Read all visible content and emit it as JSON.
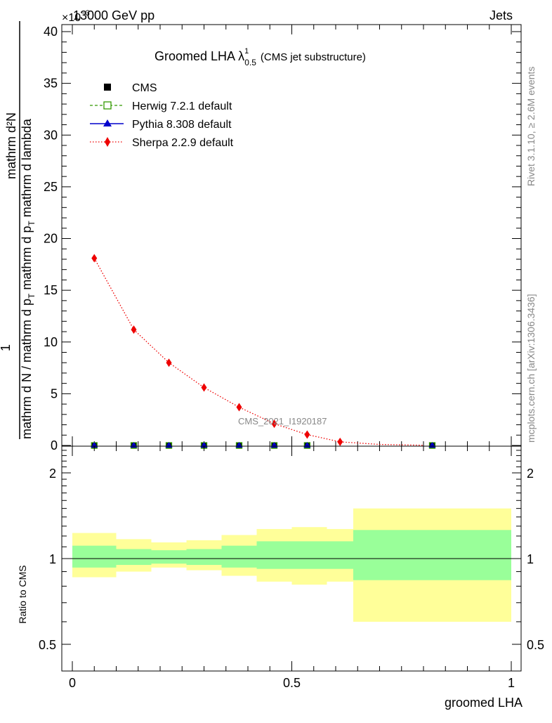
{
  "header": {
    "left": "13000 GeV pp",
    "right": "Jets",
    "exponent": "×10",
    "exponent_power": "−3"
  },
  "side": {
    "rivet": "Rivet 3.1.10, ≥ 2.6M events",
    "mcplots": "mcplots.cern.ch [arXiv:1306.3436]"
  },
  "plot_title": {
    "main": "Groomed LHA",
    "lambda": "λ",
    "sup": "1",
    "sub": "0.5",
    "note": "(CMS jet substructure)"
  },
  "ylabel_main": {
    "numerator": "1",
    "denominator": "mathrm d N / mathrm d p",
    "denominator_sub": "T",
    "deriv_numerator": "mathrm d²N",
    "deriv_denominator": "mathrm d p",
    "deriv_denominator_sub": "T",
    "deriv_denominator_rest": "mathrm d lambda"
  },
  "ylabel_ratio": "Ratio to CMS",
  "xlabel": "groomed LHA",
  "watermark": "CMS_2021_I1920187",
  "legend": [
    {
      "label": "CMS",
      "color": "#000000",
      "marker": "square-filled",
      "line": "none"
    },
    {
      "label": "Herwig 7.2.1 default",
      "color": "#339900",
      "marker": "square-open",
      "line": "dashed"
    },
    {
      "label": "Pythia 8.308 default",
      "color": "#0000cc",
      "marker": "triangle",
      "line": "solid"
    },
    {
      "label": "Sherpa 2.2.9 default",
      "color": "#ee0000",
      "marker": "diamond",
      "line": "dotted"
    }
  ],
  "colors": {
    "band_inner": "#99ff99",
    "band_outer": "#ffff99"
  },
  "chart_data": {
    "type": "line",
    "xlim": [
      0,
      1
    ],
    "main_ylim": [
      0,
      40
    ],
    "main_yticks": [
      "0",
      "5",
      "10",
      "15",
      "20",
      "25",
      "30",
      "35",
      "40"
    ],
    "xticks": [
      "0",
      "0.5",
      "1"
    ],
    "ratio_ylim_log": [
      0.4,
      2.5
    ],
    "ratio_yticks": [
      "0.5",
      "1",
      "2"
    ],
    "series": [
      {
        "name": "CMS",
        "x": [
          0.05,
          0.14,
          0.22,
          0.3,
          0.38,
          0.46,
          0.535,
          0.82
        ],
        "y": [
          0,
          0,
          0,
          0,
          0,
          0,
          0,
          0
        ]
      },
      {
        "name": "Herwig 7.2.1 default",
        "x": [
          0.05,
          0.14,
          0.22,
          0.3,
          0.38,
          0.46,
          0.535,
          0.82
        ],
        "y": [
          0,
          0,
          0,
          0,
          0,
          0,
          0,
          0
        ]
      },
      {
        "name": "Pythia 8.308 default",
        "x": [
          0.05,
          0.14,
          0.22,
          0.3,
          0.38,
          0.46,
          0.535,
          0.82
        ],
        "y": [
          0,
          0,
          0,
          0,
          0,
          0,
          0,
          0
        ]
      },
      {
        "name": "Sherpa 2.2.9 default",
        "x": [
          0.05,
          0.14,
          0.22,
          0.3,
          0.38,
          0.46,
          0.535,
          0.61,
          0.7,
          0.8
        ],
        "y": [
          18.1,
          11.2,
          8.0,
          5.6,
          3.7,
          2.1,
          1.05,
          0.35,
          0.1,
          0.02
        ]
      }
    ],
    "ratio_bands": [
      {
        "x0": 0.0,
        "x1": 0.1,
        "inner": [
          0.93,
          1.11
        ],
        "outer": [
          0.86,
          1.23
        ]
      },
      {
        "x0": 0.1,
        "x1": 0.18,
        "inner": [
          0.95,
          1.08
        ],
        "outer": [
          0.9,
          1.17
        ]
      },
      {
        "x0": 0.18,
        "x1": 0.26,
        "inner": [
          0.96,
          1.07
        ],
        "outer": [
          0.93,
          1.14
        ]
      },
      {
        "x0": 0.26,
        "x1": 0.34,
        "inner": [
          0.95,
          1.08
        ],
        "outer": [
          0.91,
          1.16
        ]
      },
      {
        "x0": 0.34,
        "x1": 0.42,
        "inner": [
          0.93,
          1.11
        ],
        "outer": [
          0.87,
          1.21
        ]
      },
      {
        "x0": 0.42,
        "x1": 0.5,
        "inner": [
          0.92,
          1.15
        ],
        "outer": [
          0.83,
          1.27
        ]
      },
      {
        "x0": 0.5,
        "x1": 0.58,
        "inner": [
          0.92,
          1.15
        ],
        "outer": [
          0.81,
          1.29
        ]
      },
      {
        "x0": 0.58,
        "x1": 0.64,
        "inner": [
          0.92,
          1.15
        ],
        "outer": [
          0.83,
          1.27
        ]
      },
      {
        "x0": 0.64,
        "x1": 1.0,
        "inner": [
          0.84,
          1.26
        ],
        "outer": [
          0.6,
          1.5
        ]
      }
    ],
    "ratio_reference": 1
  }
}
